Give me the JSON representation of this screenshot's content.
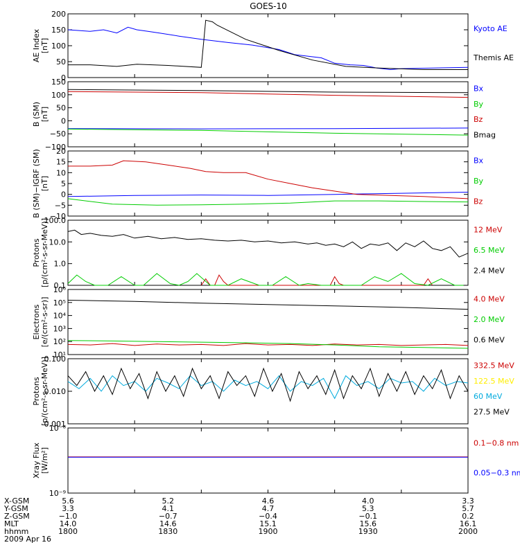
{
  "title": "GOES-10",
  "colors": {
    "black": "#000000",
    "blue": "#0000ff",
    "red": "#cc0000",
    "green": "#00cc00",
    "yellow": "#ffee00",
    "cyan": "#00aadd"
  },
  "chart_data": [
    {
      "id": "ae",
      "type": "line",
      "log": false,
      "ylabel": [
        "AE Index",
        "[nT]"
      ],
      "ylim": [
        0,
        200
      ],
      "ticks": [
        0,
        50,
        100,
        150,
        200
      ],
      "tick_labels": [
        "0",
        "50",
        "100",
        "150",
        "200"
      ],
      "series": [
        {
          "name": "Kyoto AE",
          "color": "blue",
          "x": [
            0,
            4,
            10,
            16,
            22,
            27,
            31,
            36,
            41,
            50,
            60,
            72,
            83,
            95,
            102,
            114,
            120,
            127,
            133,
            139,
            145,
            150,
            164,
            180
          ],
          "values": [
            150,
            148,
            145,
            150,
            140,
            158,
            150,
            145,
            140,
            130,
            120,
            110,
            102,
            88,
            72,
            62,
            45,
            40,
            38,
            30,
            25,
            28,
            30,
            32
          ]
        },
        {
          "name": "Themis AE",
          "color": "black",
          "x": [
            0,
            10,
            22,
            31,
            45,
            60,
            62,
            65,
            67,
            80,
            95,
            110,
            125,
            140,
            160,
            180
          ],
          "values": [
            40,
            40,
            35,
            42,
            38,
            32,
            180,
            175,
            165,
            120,
            85,
            55,
            35,
            30,
            25,
            25
          ]
        }
      ]
    },
    {
      "id": "bsm",
      "type": "line",
      "log": false,
      "ylabel": [
        "B (SM)",
        "[nT]"
      ],
      "ylim": [
        -100,
        150
      ],
      "ticks": [
        -100,
        -50,
        0,
        50,
        100,
        150
      ],
      "tick_labels": [
        "−100",
        "−50",
        "0",
        "50",
        "100",
        "150"
      ],
      "series": [
        {
          "name": "Bx",
          "color": "blue",
          "x": [
            0,
            60,
            120,
            180
          ],
          "values": [
            -30,
            -31,
            -30,
            -28
          ]
        },
        {
          "name": "By",
          "color": "green",
          "x": [
            0,
            60,
            120,
            180
          ],
          "values": [
            -32,
            -37,
            -48,
            -55
          ]
        },
        {
          "name": "Bz",
          "color": "red",
          "x": [
            0,
            60,
            120,
            180
          ],
          "values": [
            112,
            108,
            98,
            90
          ]
        },
        {
          "name": "Bmag",
          "color": "black",
          "x": [
            0,
            60,
            120,
            180
          ],
          "values": [
            120,
            116,
            110,
            108
          ]
        }
      ]
    },
    {
      "id": "bdiff",
      "type": "line",
      "log": false,
      "ylabel": [
        "B (SM)−IGRF (SM)",
        "[nT]"
      ],
      "ylim": [
        -10,
        20
      ],
      "ticks": [
        -10,
        -5,
        0,
        5,
        10,
        15,
        20
      ],
      "tick_labels": [
        "−10",
        "−5",
        "0",
        "5",
        "10",
        "15",
        "20"
      ],
      "series": [
        {
          "name": "Bx",
          "color": "blue",
          "x": [
            0,
            30,
            60,
            90,
            120,
            150,
            180
          ],
          "values": [
            -1,
            -0.5,
            -0.3,
            -0.5,
            0,
            0.5,
            1
          ]
        },
        {
          "name": "By",
          "color": "green",
          "x": [
            0,
            20,
            40,
            60,
            80,
            100,
            120,
            140,
            160,
            180
          ],
          "values": [
            -2,
            -4.5,
            -5,
            -4.8,
            -4.5,
            -4,
            -3,
            -3,
            -3.3,
            -3.5
          ]
        },
        {
          "name": "Bz",
          "color": "red",
          "x": [
            0,
            10,
            20,
            25,
            35,
            45,
            55,
            62,
            70,
            80,
            90,
            100,
            110,
            120,
            130,
            145,
            160,
            170,
            180
          ],
          "values": [
            13,
            13,
            13.5,
            15.5,
            15,
            13.5,
            12,
            10.5,
            10,
            10,
            7,
            5,
            3,
            1.5,
            0,
            -0.5,
            -1,
            -1.5,
            -2
          ]
        }
      ]
    },
    {
      "id": "protons1",
      "type": "line",
      "log": true,
      "ylabel": [
        "Protons",
        "[p/(cm²-s-sr-MeV)]"
      ],
      "ylim": [
        0.1,
        100
      ],
      "ticks": [
        0.1,
        1,
        10,
        100
      ],
      "tick_labels": [
        "0.1",
        "1.0",
        "10.0",
        "100.0"
      ],
      "series": [
        {
          "name": "12 MeV",
          "color": "red",
          "x": [
            60,
            62,
            64,
            66,
            68,
            70,
            72,
            74,
            118,
            120,
            122,
            124,
            126,
            128,
            160,
            162,
            164
          ],
          "values": [
            0.1,
            0.2,
            0.1,
            0.1,
            0.3,
            0.15,
            0.1,
            0.1,
            0.1,
            0.25,
            0.12,
            0.1,
            0.1,
            0.1,
            0.1,
            0.2,
            0.1
          ]
        },
        {
          "name": "6.5 MeV",
          "color": "green",
          "x": [
            0,
            4,
            8,
            12,
            18,
            24,
            30,
            34,
            40,
            46,
            50,
            54,
            58,
            64,
            72,
            78,
            86,
            92,
            98,
            104,
            108,
            114,
            132,
            138,
            144,
            150,
            156,
            162,
            168,
            174,
            178
          ],
          "values": [
            0.12,
            0.3,
            0.15,
            0.1,
            0.1,
            0.25,
            0.1,
            0.1,
            0.35,
            0.12,
            0.1,
            0.15,
            0.35,
            0.1,
            0.1,
            0.2,
            0.1,
            0.1,
            0.25,
            0.1,
            0.12,
            0.1,
            0.1,
            0.25,
            0.15,
            0.35,
            0.12,
            0.1,
            0.2,
            0.1,
            0.1
          ]
        },
        {
          "name": "2.4 MeV",
          "color": "black",
          "x": [
            0,
            3,
            6,
            10,
            15,
            20,
            25,
            30,
            36,
            42,
            48,
            54,
            60,
            66,
            72,
            78,
            84,
            90,
            96,
            102,
            108,
            112,
            116,
            120,
            124,
            128,
            132,
            136,
            140,
            144,
            148,
            152,
            156,
            160,
            164,
            168,
            172,
            176,
            180
          ],
          "values": [
            30,
            35,
            22,
            25,
            20,
            18,
            22,
            15,
            18,
            14,
            16,
            13,
            14,
            12,
            11,
            12,
            10,
            11,
            9,
            10,
            8,
            9,
            7,
            8,
            6,
            10,
            5,
            8,
            7,
            9,
            4,
            9,
            6,
            11,
            5,
            4,
            6,
            2,
            3
          ]
        }
      ]
    },
    {
      "id": "electrons",
      "type": "line",
      "log": true,
      "ylabel": [
        "Electrons",
        "[e/(cm²-s-sr)]"
      ],
      "ylim": [
        10,
        1000000
      ],
      "ticks": [
        10,
        100,
        1000,
        10000,
        100000,
        1000000
      ],
      "tick_labels": [
        "10¹",
        "10²",
        "10³",
        "10⁴",
        "10⁵",
        "10⁶"
      ],
      "series": [
        {
          "name": "4.0 MeV",
          "color": "red",
          "x": [
            0,
            10,
            20,
            30,
            40,
            50,
            60,
            70,
            80,
            90,
            100,
            110,
            120,
            130,
            140,
            150,
            160,
            170,
            180
          ],
          "values": [
            60,
            55,
            70,
            50,
            65,
            55,
            60,
            50,
            70,
            55,
            60,
            50,
            65,
            55,
            60,
            50,
            55,
            60,
            50
          ]
        },
        {
          "name": "2.0 MeV",
          "color": "green",
          "x": [
            0,
            20,
            40,
            60,
            80,
            100,
            120,
            140,
            160,
            180
          ],
          "values": [
            120,
            110,
            100,
            90,
            80,
            70,
            55,
            40,
            35,
            30
          ]
        },
        {
          "name": "0.6 MeV",
          "color": "black",
          "x": [
            0,
            30,
            60,
            90,
            120,
            150,
            180
          ],
          "values": [
            150000,
            120000,
            90000,
            70000,
            55000,
            42000,
            30000
          ]
        }
      ]
    },
    {
      "id": "protons2",
      "type": "line",
      "log": true,
      "ylabel": [
        "Protons",
        "[p/(cm²-s-sr-MeV)]"
      ],
      "ylim": [
        0.001,
        0.1
      ],
      "ticks": [
        0.001,
        0.01,
        0.1
      ],
      "tick_labels": [
        "0.001",
        "0.010",
        "0.100"
      ],
      "series": [
        {
          "name": "332.5 MeV",
          "color": "red",
          "x": [],
          "values": []
        },
        {
          "name": "122.5 MeV",
          "color": "yellow",
          "x": [],
          "values": []
        },
        {
          "name": "60 MeV",
          "color": "cyan",
          "x": [
            0,
            5,
            10,
            15,
            20,
            25,
            30,
            35,
            40,
            45,
            50,
            55,
            60,
            65,
            70,
            75,
            80,
            85,
            90,
            95,
            100,
            105,
            110,
            115,
            120,
            125,
            130,
            135,
            140,
            145,
            150,
            155,
            160,
            165,
            170,
            175,
            180
          ],
          "values": [
            0.02,
            0.012,
            0.025,
            0.01,
            0.03,
            0.015,
            0.02,
            0.01,
            0.025,
            0.018,
            0.012,
            0.03,
            0.015,
            0.02,
            0.01,
            0.022,
            0.015,
            0.02,
            0.012,
            0.03,
            0.01,
            0.02,
            0.015,
            0.025,
            0.006,
            0.03,
            0.015,
            0.02,
            0.012,
            0.025,
            0.018,
            0.02,
            0.01,
            0.025,
            0.015,
            0.02,
            0.018
          ]
        },
        {
          "name": "27.5 MeV",
          "color": "black",
          "x": [
            0,
            4,
            8,
            12,
            16,
            20,
            24,
            28,
            32,
            36,
            40,
            44,
            48,
            52,
            56,
            60,
            64,
            68,
            72,
            76,
            80,
            84,
            88,
            92,
            96,
            100,
            104,
            108,
            112,
            116,
            120,
            124,
            128,
            132,
            136,
            140,
            144,
            148,
            152,
            156,
            160,
            164,
            168,
            172,
            176,
            180
          ],
          "values": [
            0.03,
            0.015,
            0.04,
            0.01,
            0.03,
            0.008,
            0.05,
            0.012,
            0.035,
            0.006,
            0.04,
            0.01,
            0.03,
            0.007,
            0.05,
            0.012,
            0.03,
            0.006,
            0.04,
            0.015,
            0.03,
            0.007,
            0.05,
            0.01,
            0.035,
            0.005,
            0.04,
            0.012,
            0.03,
            0.008,
            0.045,
            0.006,
            0.03,
            0.012,
            0.05,
            0.007,
            0.035,
            0.01,
            0.04,
            0.008,
            0.03,
            0.012,
            0.045,
            0.006,
            0.03,
            0.01
          ]
        }
      ]
    },
    {
      "id": "xray",
      "type": "line",
      "log": true,
      "ylabel": [
        "Xray Flux",
        "[W/m²]"
      ],
      "ylim": [
        1e-09,
        1e-08
      ],
      "ticks": [
        1e-09,
        1e-08
      ],
      "tick_labels": [
        "10⁻⁹",
        "10⁻⁸"
      ],
      "series": [
        {
          "name": "0.1−0.8 nm",
          "color": "red",
          "x": [
            0,
            180
          ],
          "values": [
            3.6e-09,
            3.6e-09
          ]
        },
        {
          "name": "0.05−0.3 nm",
          "color": "blue",
          "x": [
            0,
            180
          ],
          "values": [
            3.55e-09,
            3.55e-09
          ]
        }
      ]
    }
  ],
  "xaxis": {
    "x": [
      0,
      30,
      60,
      90,
      120,
      150,
      180
    ],
    "row_labels": [
      "X-GSM",
      "Y-GSM",
      "Z-GSM",
      "MLT",
      "hhmm"
    ],
    "columns": [
      [
        "5.6",
        "3.3",
        "−1.0",
        "14.0",
        "1800"
      ],
      [
        "5.2",
        "4.1",
        "−0.7",
        "14.6",
        "1830"
      ],
      [
        "4.6",
        "4.7",
        "−0.4",
        "15.1",
        "1900"
      ],
      [
        "4.0",
        "5.3",
        "−0.1",
        "15.6",
        "1930"
      ],
      [
        "3.3",
        "5.7",
        "0.2",
        "16.1",
        "2000"
      ]
    ],
    "label_x": [
      0,
      60,
      120,
      180,
      240
    ],
    "date": "2009 Apr 16"
  }
}
